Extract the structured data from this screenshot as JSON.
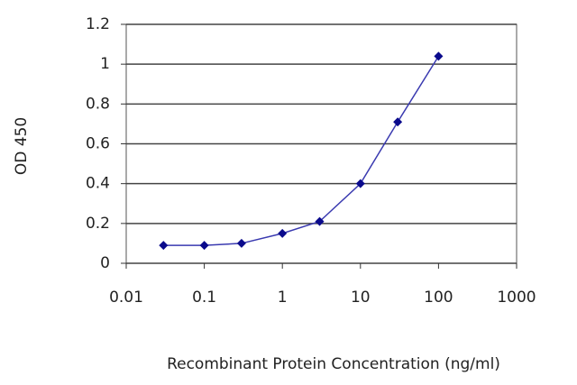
{
  "chart_data": {
    "type": "line",
    "xlabel": "Recombinant Protein Concentration (ng/ml)",
    "ylabel": "OD 450",
    "x": [
      0.03,
      0.1,
      0.3,
      1,
      3,
      10,
      30,
      100
    ],
    "values": [
      0.09,
      0.09,
      0.1,
      0.15,
      0.21,
      0.4,
      0.71,
      1.04
    ],
    "color": "#0a0a8c",
    "line_color": "#3a3ab0",
    "xscale": "log",
    "xlim": [
      0.01,
      1000
    ],
    "xticks": [
      0.01,
      0.1,
      1,
      10,
      100,
      1000
    ],
    "ylim": [
      0,
      1.2
    ],
    "yticks": [
      0,
      0.2,
      0.4,
      0.6,
      0.8,
      1,
      1.2
    ],
    "grid": true
  }
}
